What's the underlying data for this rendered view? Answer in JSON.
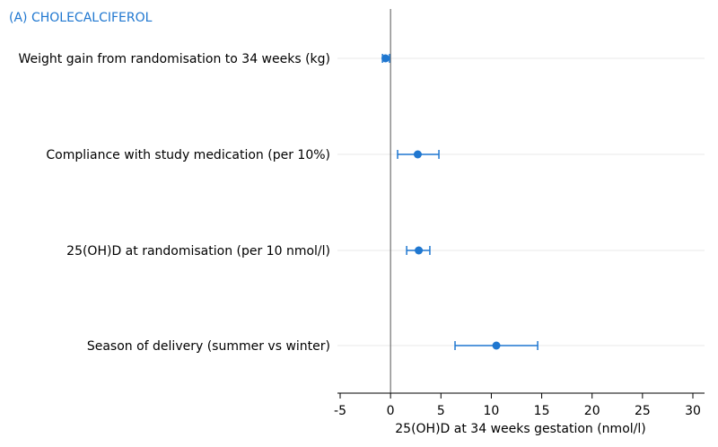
{
  "chart_data": {
    "type": "forest",
    "title": "(A) CHOLECALCIFEROL",
    "xlabel": "25(OH)D at 34 weeks gestation (nmol/l)",
    "xlim": [
      -5,
      30
    ],
    "xticks": [
      "-5",
      "0",
      "5",
      "10",
      "15",
      "20",
      "25",
      "30"
    ],
    "reference_line": 0,
    "grid": "horizontal",
    "colors": {
      "marker": "#1f77d0",
      "title": "#1f77d0",
      "grid": "#e9e9e9",
      "axis": "#000000"
    },
    "rows": [
      {
        "label": "Weight gain from randomisation to 34 weeks (kg)",
        "estimate": -0.5,
        "lower": -0.8,
        "upper": -0.1
      },
      {
        "label": "Compliance with study medication (per 10%)",
        "estimate": 2.7,
        "lower": 0.7,
        "upper": 4.8
      },
      {
        "label": "25(OH)D at randomisation (per 10 nmol/l)",
        "estimate": 2.8,
        "lower": 1.6,
        "upper": 3.9
      },
      {
        "label": "Season of delivery (summer vs winter)",
        "estimate": 10.5,
        "lower": 6.4,
        "upper": 14.6
      }
    ]
  }
}
